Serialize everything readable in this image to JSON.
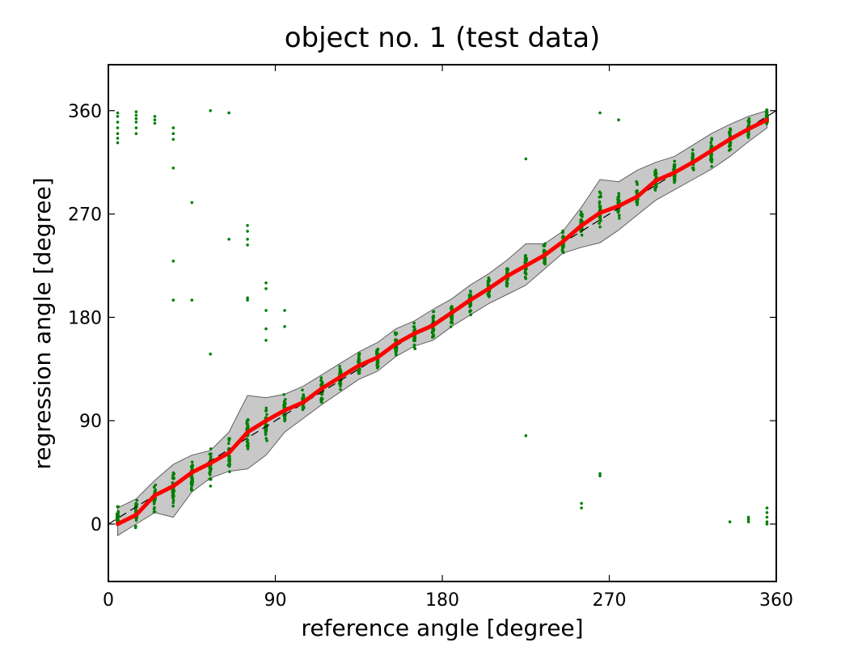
{
  "chart_data": {
    "type": "line",
    "title": "object no. 1 (test data)",
    "xlabel": "reference angle [degree]",
    "ylabel": "regression angle [degree]",
    "xlim": [
      0,
      360
    ],
    "ylim": [
      -50,
      400
    ],
    "xticks": [
      0,
      90,
      180,
      270,
      360
    ],
    "yticks": [
      0,
      90,
      180,
      270,
      360
    ],
    "grid": false,
    "colors": {
      "scatter": "#008000",
      "mean": "#ff0000",
      "reference": "#000000",
      "band_fill": "#c8c8c8",
      "band_edge": "#606060"
    },
    "reference_line": {
      "x": [
        0,
        360
      ],
      "y": [
        0,
        360
      ],
      "style": "dashed"
    },
    "mean_series": {
      "x": [
        5,
        15,
        25,
        35,
        45,
        55,
        65,
        75,
        85,
        95,
        105,
        115,
        125,
        135,
        145,
        155,
        165,
        175,
        185,
        195,
        205,
        215,
        225,
        235,
        245,
        255,
        265,
        275,
        285,
        295,
        305,
        315,
        325,
        335,
        345,
        355
      ],
      "y": [
        0,
        8,
        25,
        33,
        45,
        53,
        62,
        80,
        90,
        99,
        106,
        118,
        128,
        138,
        145,
        157,
        166,
        173,
        184,
        195,
        205,
        216,
        225,
        234,
        246,
        260,
        271,
        277,
        285,
        299,
        306,
        315,
        325,
        335,
        344,
        352
      ]
    },
    "band": {
      "x": [
        5,
        15,
        25,
        35,
        45,
        55,
        65,
        75,
        85,
        95,
        105,
        115,
        125,
        135,
        145,
        155,
        165,
        175,
        185,
        195,
        205,
        215,
        225,
        235,
        245,
        255,
        265,
        275,
        285,
        295,
        305,
        315,
        325,
        335,
        345,
        355
      ],
      "upper": [
        14,
        22,
        38,
        52,
        60,
        64,
        80,
        112,
        110,
        113,
        120,
        130,
        140,
        150,
        158,
        170,
        177,
        187,
        196,
        208,
        218,
        230,
        244,
        244,
        255,
        276,
        300,
        298,
        308,
        315,
        320,
        330,
        340,
        348,
        355,
        360
      ],
      "lower": [
        -10,
        0,
        10,
        6,
        28,
        40,
        46,
        48,
        60,
        80,
        92,
        104,
        115,
        126,
        133,
        146,
        155,
        160,
        172,
        182,
        192,
        200,
        208,
        222,
        236,
        241,
        245,
        256,
        269,
        282,
        291,
        300,
        309,
        320,
        333,
        345
      ]
    },
    "scatter_clusters": {
      "x": [
        5,
        15,
        25,
        35,
        45,
        55,
        65,
        75,
        85,
        95,
        105,
        115,
        125,
        135,
        145,
        155,
        165,
        175,
        185,
        195,
        205,
        215,
        225,
        235,
        245,
        255,
        265,
        275,
        285,
        295,
        305,
        315,
        325,
        335,
        345,
        355
      ],
      "center": [
        5,
        10,
        22,
        30,
        42,
        50,
        60,
        79,
        88,
        98,
        106,
        117,
        128,
        138,
        145,
        156,
        165,
        173,
        183,
        194,
        205,
        215,
        225,
        234,
        246,
        262,
        272,
        278,
        286,
        300,
        306,
        315,
        325,
        335,
        345,
        355
      ],
      "spread": [
        8,
        10,
        12,
        15,
        12,
        12,
        14,
        15,
        14,
        12,
        10,
        12,
        10,
        11,
        10,
        10,
        11,
        10,
        10,
        10,
        10,
        10,
        11,
        10,
        10,
        12,
        15,
        12,
        10,
        10,
        10,
        10,
        10,
        10,
        10,
        8
      ]
    },
    "outliers": [
      [
        5,
        340
      ],
      [
        5,
        345
      ],
      [
        5,
        350
      ],
      [
        5,
        355
      ],
      [
        5,
        358
      ],
      [
        5,
        332
      ],
      [
        5,
        336
      ],
      [
        15,
        350
      ],
      [
        15,
        353
      ],
      [
        15,
        356
      ],
      [
        15,
        359
      ],
      [
        15,
        345
      ],
      [
        15,
        340
      ],
      [
        25,
        355
      ],
      [
        25,
        352
      ],
      [
        25,
        349
      ],
      [
        35,
        345
      ],
      [
        35,
        340
      ],
      [
        35,
        335
      ],
      [
        35,
        310
      ],
      [
        35,
        229
      ],
      [
        35,
        195
      ],
      [
        45,
        280
      ],
      [
        45,
        195
      ],
      [
        55,
        360
      ],
      [
        55,
        148
      ],
      [
        65,
        358
      ],
      [
        65,
        248
      ],
      [
        75,
        260
      ],
      [
        75,
        255
      ],
      [
        75,
        248
      ],
      [
        75,
        243
      ],
      [
        75,
        197
      ],
      [
        75,
        195
      ],
      [
        85,
        210
      ],
      [
        85,
        205
      ],
      [
        85,
        186
      ],
      [
        85,
        170
      ],
      [
        85,
        160
      ],
      [
        95,
        186
      ],
      [
        95,
        172
      ],
      [
        225,
        318
      ],
      [
        225,
        77
      ],
      [
        255,
        18
      ],
      [
        255,
        14
      ],
      [
        265,
        358
      ],
      [
        265,
        44
      ],
      [
        265,
        42
      ],
      [
        275,
        352
      ],
      [
        335,
        2
      ],
      [
        345,
        6
      ],
      [
        345,
        4
      ],
      [
        345,
        2
      ],
      [
        355,
        14
      ],
      [
        355,
        10
      ],
      [
        355,
        6
      ],
      [
        355,
        2
      ],
      [
        355,
        0
      ]
    ]
  }
}
